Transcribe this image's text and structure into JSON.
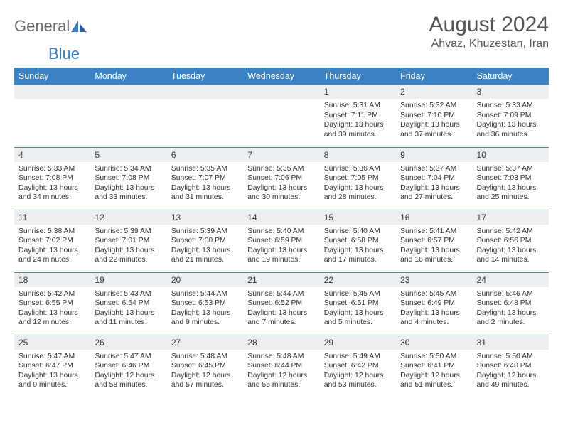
{
  "logo": {
    "text1": "General",
    "text2": "Blue"
  },
  "title": "August 2024",
  "location": "Ahvaz, Khuzestan, Iran",
  "colors": {
    "header_bg": "#3b82c4",
    "header_text": "#ffffff",
    "daynum_bg": "#eceff1",
    "rule": "#3b82c4",
    "body_text": "#333333",
    "logo_gray": "#6b6b6b",
    "logo_blue": "#3b7bbf"
  },
  "dayHeaders": [
    "Sunday",
    "Monday",
    "Tuesday",
    "Wednesday",
    "Thursday",
    "Friday",
    "Saturday"
  ],
  "weeks": [
    [
      null,
      null,
      null,
      null,
      {
        "n": "1",
        "sr": "5:31 AM",
        "ss": "7:11 PM",
        "dl": "13 hours and 39 minutes."
      },
      {
        "n": "2",
        "sr": "5:32 AM",
        "ss": "7:10 PM",
        "dl": "13 hours and 37 minutes."
      },
      {
        "n": "3",
        "sr": "5:33 AM",
        "ss": "7:09 PM",
        "dl": "13 hours and 36 minutes."
      }
    ],
    [
      {
        "n": "4",
        "sr": "5:33 AM",
        "ss": "7:08 PM",
        "dl": "13 hours and 34 minutes."
      },
      {
        "n": "5",
        "sr": "5:34 AM",
        "ss": "7:08 PM",
        "dl": "13 hours and 33 minutes."
      },
      {
        "n": "6",
        "sr": "5:35 AM",
        "ss": "7:07 PM",
        "dl": "13 hours and 31 minutes."
      },
      {
        "n": "7",
        "sr": "5:35 AM",
        "ss": "7:06 PM",
        "dl": "13 hours and 30 minutes."
      },
      {
        "n": "8",
        "sr": "5:36 AM",
        "ss": "7:05 PM",
        "dl": "13 hours and 28 minutes."
      },
      {
        "n": "9",
        "sr": "5:37 AM",
        "ss": "7:04 PM",
        "dl": "13 hours and 27 minutes."
      },
      {
        "n": "10",
        "sr": "5:37 AM",
        "ss": "7:03 PM",
        "dl": "13 hours and 25 minutes."
      }
    ],
    [
      {
        "n": "11",
        "sr": "5:38 AM",
        "ss": "7:02 PM",
        "dl": "13 hours and 24 minutes."
      },
      {
        "n": "12",
        "sr": "5:39 AM",
        "ss": "7:01 PM",
        "dl": "13 hours and 22 minutes."
      },
      {
        "n": "13",
        "sr": "5:39 AM",
        "ss": "7:00 PM",
        "dl": "13 hours and 21 minutes."
      },
      {
        "n": "14",
        "sr": "5:40 AM",
        "ss": "6:59 PM",
        "dl": "13 hours and 19 minutes."
      },
      {
        "n": "15",
        "sr": "5:40 AM",
        "ss": "6:58 PM",
        "dl": "13 hours and 17 minutes."
      },
      {
        "n": "16",
        "sr": "5:41 AM",
        "ss": "6:57 PM",
        "dl": "13 hours and 16 minutes."
      },
      {
        "n": "17",
        "sr": "5:42 AM",
        "ss": "6:56 PM",
        "dl": "13 hours and 14 minutes."
      }
    ],
    [
      {
        "n": "18",
        "sr": "5:42 AM",
        "ss": "6:55 PM",
        "dl": "13 hours and 12 minutes."
      },
      {
        "n": "19",
        "sr": "5:43 AM",
        "ss": "6:54 PM",
        "dl": "13 hours and 11 minutes."
      },
      {
        "n": "20",
        "sr": "5:44 AM",
        "ss": "6:53 PM",
        "dl": "13 hours and 9 minutes."
      },
      {
        "n": "21",
        "sr": "5:44 AM",
        "ss": "6:52 PM",
        "dl": "13 hours and 7 minutes."
      },
      {
        "n": "22",
        "sr": "5:45 AM",
        "ss": "6:51 PM",
        "dl": "13 hours and 5 minutes."
      },
      {
        "n": "23",
        "sr": "5:45 AM",
        "ss": "6:49 PM",
        "dl": "13 hours and 4 minutes."
      },
      {
        "n": "24",
        "sr": "5:46 AM",
        "ss": "6:48 PM",
        "dl": "13 hours and 2 minutes."
      }
    ],
    [
      {
        "n": "25",
        "sr": "5:47 AM",
        "ss": "6:47 PM",
        "dl": "13 hours and 0 minutes."
      },
      {
        "n": "26",
        "sr": "5:47 AM",
        "ss": "6:46 PM",
        "dl": "12 hours and 58 minutes."
      },
      {
        "n": "27",
        "sr": "5:48 AM",
        "ss": "6:45 PM",
        "dl": "12 hours and 57 minutes."
      },
      {
        "n": "28",
        "sr": "5:48 AM",
        "ss": "6:44 PM",
        "dl": "12 hours and 55 minutes."
      },
      {
        "n": "29",
        "sr": "5:49 AM",
        "ss": "6:42 PM",
        "dl": "12 hours and 53 minutes."
      },
      {
        "n": "30",
        "sr": "5:50 AM",
        "ss": "6:41 PM",
        "dl": "12 hours and 51 minutes."
      },
      {
        "n": "31",
        "sr": "5:50 AM",
        "ss": "6:40 PM",
        "dl": "12 hours and 49 minutes."
      }
    ]
  ],
  "labels": {
    "sunrise": "Sunrise:",
    "sunset": "Sunset:",
    "daylight": "Daylight:"
  }
}
